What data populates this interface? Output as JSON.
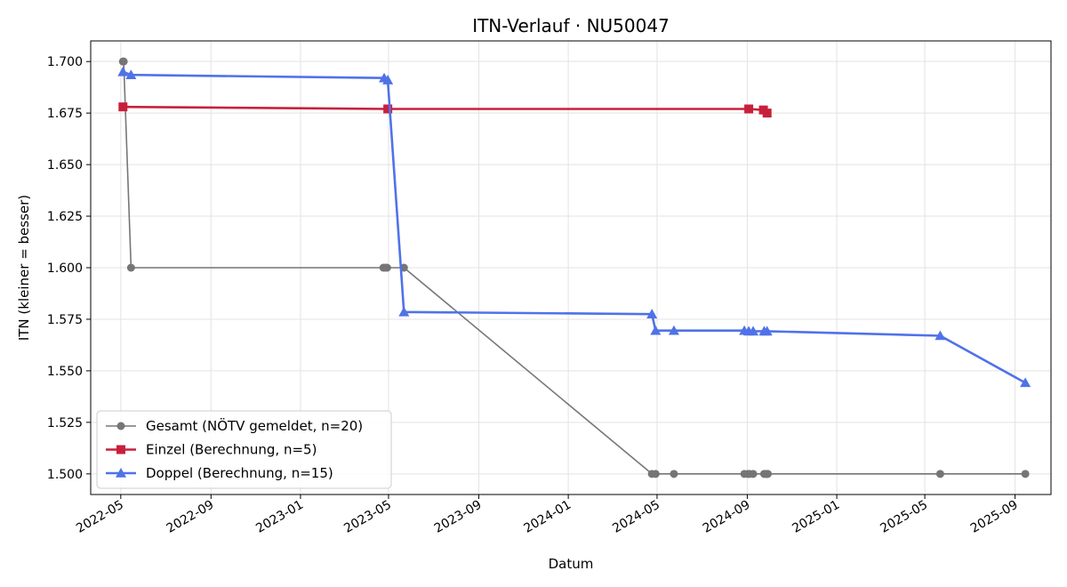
{
  "chart_data": {
    "type": "line",
    "title": "ITN-Verlauf · NU50047",
    "xlabel": "Datum",
    "ylabel": "ITN  (kleiner = besser)",
    "x_type": "date",
    "xlim": [
      "2022-03-21",
      "2025-10-20"
    ],
    "ylim": [
      1.49,
      1.71
    ],
    "x_ticks": [
      "2022-05-01",
      "2022-09-01",
      "2023-01-01",
      "2023-05-01",
      "2023-09-01",
      "2024-01-01",
      "2024-05-01",
      "2024-09-01",
      "2025-01-01",
      "2025-05-01",
      "2025-09-01"
    ],
    "x_tick_labels": [
      "2022-05",
      "2022-09",
      "2023-01",
      "2023-05",
      "2023-09",
      "2024-01",
      "2024-05",
      "2024-09",
      "2025-01",
      "2025-05",
      "2025-09"
    ],
    "y_ticks": [
      1.5,
      1.525,
      1.55,
      1.575,
      1.6,
      1.625,
      1.65,
      1.675,
      1.7
    ],
    "y_tick_labels": [
      "1.500",
      "1.525",
      "1.550",
      "1.575",
      "1.600",
      "1.625",
      "1.650",
      "1.675",
      "1.700"
    ],
    "grid": true,
    "legend_position": "bottom-left",
    "series": [
      {
        "name": "Gesamt (NÖTV gemeldet, n=20)",
        "color": "#555555",
        "marker": "circle",
        "line_width": 1.6,
        "marker_size": 4.5,
        "opacity": 0.8,
        "points": [
          [
            "2022-05-04",
            1.7
          ],
          [
            "2022-05-05",
            1.7
          ],
          [
            "2022-05-15",
            1.6
          ],
          [
            "2023-04-24",
            1.6
          ],
          [
            "2023-04-27",
            1.6
          ],
          [
            "2023-04-29",
            1.6
          ],
          [
            "2023-05-22",
            1.6
          ],
          [
            "2024-04-24",
            1.5
          ],
          [
            "2024-04-29",
            1.5
          ],
          [
            "2024-05-24",
            1.5
          ],
          [
            "2024-08-28",
            1.5
          ],
          [
            "2024-09-02",
            1.5
          ],
          [
            "2024-09-04",
            1.5
          ],
          [
            "2024-09-09",
            1.5
          ],
          [
            "2024-09-24",
            1.5
          ],
          [
            "2024-09-26",
            1.5
          ],
          [
            "2024-09-28",
            1.5
          ],
          [
            "2024-09-29",
            1.5
          ],
          [
            "2025-05-22",
            1.5
          ],
          [
            "2025-09-15",
            1.5
          ]
        ]
      },
      {
        "name": "Einzel (Berechnung, n=5)",
        "color": "#c8203b",
        "marker": "square",
        "line_width": 2.6,
        "marker_size": 5,
        "opacity": 1,
        "points": [
          [
            "2022-05-04",
            1.678
          ],
          [
            "2023-04-30",
            1.677
          ],
          [
            "2024-09-03",
            1.677
          ],
          [
            "2024-09-23",
            1.6765
          ],
          [
            "2024-09-28",
            1.675
          ]
        ]
      },
      {
        "name": "Doppel (Berechnung, n=15)",
        "color": "#5072e8",
        "marker": "triangle",
        "line_width": 2.6,
        "marker_size": 6,
        "opacity": 1,
        "points": [
          [
            "2022-05-04",
            1.695
          ],
          [
            "2022-05-15",
            1.6935
          ],
          [
            "2023-04-25",
            1.692
          ],
          [
            "2023-04-30",
            1.691
          ],
          [
            "2023-05-22",
            1.5785
          ],
          [
            "2024-04-24",
            1.5775
          ],
          [
            "2024-04-29",
            1.5695
          ],
          [
            "2024-05-24",
            1.5695
          ],
          [
            "2024-08-28",
            1.5695
          ],
          [
            "2024-09-03",
            1.5692
          ],
          [
            "2024-09-09",
            1.5692
          ],
          [
            "2024-09-24",
            1.5692
          ],
          [
            "2024-09-28",
            1.5692
          ],
          [
            "2025-05-22",
            1.567
          ],
          [
            "2025-09-15",
            1.5442
          ]
        ]
      }
    ]
  }
}
